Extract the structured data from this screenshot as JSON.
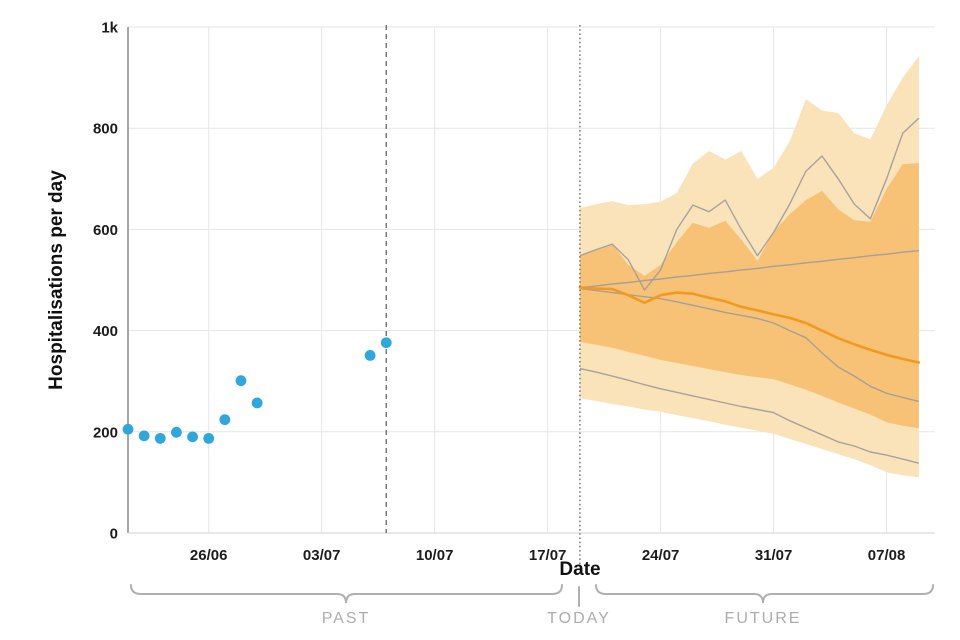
{
  "y_axis": {
    "title": "Hospitalisations per day"
  },
  "x_axis": {
    "title": "Date"
  },
  "annotations": {
    "past_label": "PAST",
    "today_label": "TODAY",
    "future_label": "FUTURE"
  },
  "chart_data": {
    "type": "scatter+fan-forecast",
    "title": "",
    "xlabel": "Date",
    "ylabel": "Hospitalisations per day",
    "ylim": [
      0,
      1000
    ],
    "x_domain_days": [
      -5,
      45
    ],
    "grid": true,
    "legend": "none",
    "y_ticks": [
      {
        "v": 0,
        "label": "0"
      },
      {
        "v": 200,
        "label": "200"
      },
      {
        "v": 400,
        "label": "400"
      },
      {
        "v": 600,
        "label": "600"
      },
      {
        "v": 800,
        "label": "800"
      },
      {
        "v": 1000,
        "label": "1k"
      }
    ],
    "x_ticks": [
      {
        "day": 0,
        "label": "26/06"
      },
      {
        "day": 7,
        "label": "03/07"
      },
      {
        "day": 14,
        "label": "10/07"
      },
      {
        "day": 21,
        "label": "17/07"
      },
      {
        "day": 28,
        "label": "24/07"
      },
      {
        "day": 35,
        "label": "31/07"
      },
      {
        "day": 42,
        "label": "07/08"
      }
    ],
    "observed": {
      "name": "observed-hospitalisations",
      "dates": [
        "21/06",
        "22/06",
        "23/06",
        "24/06",
        "25/06",
        "26/06",
        "27/06",
        "28/06",
        "29/06",
        "06/07",
        "07/07"
      ],
      "days": [
        -5,
        -4,
        -3,
        -2,
        -1,
        0,
        1,
        2,
        3,
        10,
        11
      ],
      "values": [
        205,
        192,
        187,
        199,
        190,
        187,
        224,
        301,
        257,
        351,
        376
      ]
    },
    "vlines": [
      {
        "day": 11,
        "date": "07/07",
        "style": "dashed"
      },
      {
        "day": 23,
        "date": "19/07",
        "style": "dotted",
        "label": "TODAY"
      }
    ],
    "forecast": {
      "start_day": 23,
      "dates": [
        "19/07",
        "20/07",
        "21/07",
        "22/07",
        "23/07",
        "24/07",
        "25/07",
        "26/07",
        "27/07",
        "28/07",
        "29/07",
        "30/07",
        "31/07",
        "01/08",
        "02/08",
        "03/08",
        "04/08",
        "05/08",
        "06/08",
        "07/08",
        "08/08",
        "09/08"
      ],
      "median": [
        485,
        483,
        482,
        470,
        455,
        470,
        475,
        473,
        465,
        458,
        447,
        440,
        432,
        425,
        415,
        400,
        385,
        373,
        362,
        352,
        344,
        337
      ],
      "outer_band_upper": [
        642,
        650,
        656,
        648,
        650,
        655,
        672,
        730,
        755,
        738,
        755,
        700,
        722,
        774,
        857,
        835,
        830,
        790,
        778,
        845,
        900,
        942
      ],
      "outer_band_lower": [
        266,
        261,
        255,
        250,
        244,
        240,
        233,
        227,
        221,
        214,
        208,
        202,
        196,
        186,
        176,
        166,
        156,
        146,
        134,
        120,
        114,
        110
      ],
      "inner_band_upper": [
        548,
        560,
        571,
        530,
        508,
        530,
        575,
        613,
        603,
        617,
        580,
        538,
        595,
        630,
        658,
        676,
        640,
        618,
        615,
        680,
        729,
        731
      ],
      "inner_band_lower": [
        378,
        372,
        366,
        358,
        350,
        342,
        336,
        330,
        324,
        318,
        312,
        308,
        304,
        294,
        283,
        271,
        258,
        246,
        234,
        219,
        212,
        207
      ],
      "scenarios": [
        {
          "name": "trajectory-high-jagged",
          "values": [
            548,
            560,
            571,
            540,
            480,
            520,
            600,
            648,
            635,
            658,
            600,
            548,
            594,
            650,
            715,
            745,
            700,
            650,
            621,
            700,
            790,
            820
          ]
        },
        {
          "name": "trajectory-slow-rise",
          "values": [
            485,
            488,
            492,
            495,
            499,
            502,
            506,
            509,
            513,
            516,
            520,
            523,
            527,
            530,
            534,
            537,
            541,
            544,
            548,
            551,
            555,
            558
          ]
        },
        {
          "name": "trajectory-mid-decline",
          "values": [
            483,
            479,
            475,
            471,
            467,
            463,
            457,
            450,
            443,
            436,
            430,
            424,
            415,
            400,
            386,
            356,
            328,
            310,
            290,
            276,
            268,
            260
          ]
        },
        {
          "name": "trajectory-low-decline",
          "values": [
            325,
            318,
            310,
            302,
            293,
            285,
            278,
            271,
            264,
            257,
            250,
            244,
            238,
            222,
            208,
            194,
            180,
            172,
            160,
            154,
            146,
            138
          ]
        }
      ]
    },
    "colors": {
      "observed_points": "#2fa7dc",
      "median_line": "#f29a1f",
      "inner_band": "#f7c276",
      "outer_band": "#fae2b9",
      "scenario_lines": "#9c9c9c",
      "grid": "#e6e6e6",
      "y_axis_line": "#8a8a8a",
      "baseline": "#d9d9d9",
      "vline": "#666666",
      "brace": "#b0b0b0"
    }
  }
}
